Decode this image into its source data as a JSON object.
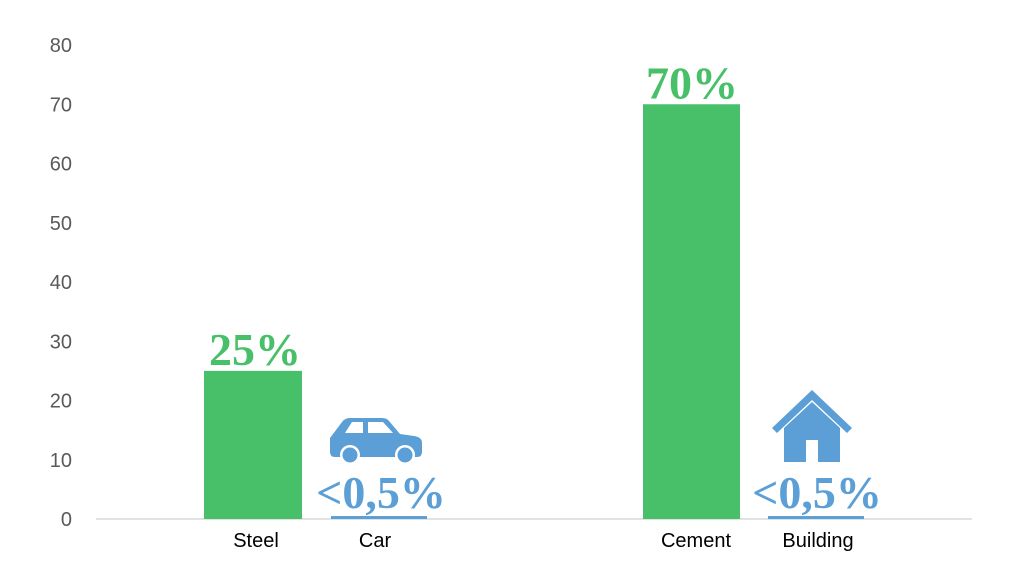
{
  "chart_data": {
    "type": "bar",
    "categories": [
      "Steel",
      "Car",
      "Cement",
      "Building"
    ],
    "values": [
      25,
      0.5,
      70,
      0.5
    ],
    "data_labels": [
      "25%",
      "<0,5%",
      "70%",
      "<0,5%"
    ],
    "icons": [
      "",
      "car-icon",
      "",
      "house-icon"
    ],
    "colors": [
      "#48bf69",
      "#5b9fd6",
      "#48bf69",
      "#5b9fd6"
    ],
    "label_colors": [
      "#48bf69",
      "#5b9fd6",
      "#48bf69",
      "#5b9fd6"
    ],
    "title": "",
    "xlabel": "",
    "ylabel": "",
    "ylim": [
      0,
      80
    ],
    "yticks": [
      "0",
      "10",
      "20",
      "30",
      "40",
      "50",
      "60",
      "70",
      "80"
    ],
    "grid": false,
    "axis_color": "#d9d9d9"
  }
}
